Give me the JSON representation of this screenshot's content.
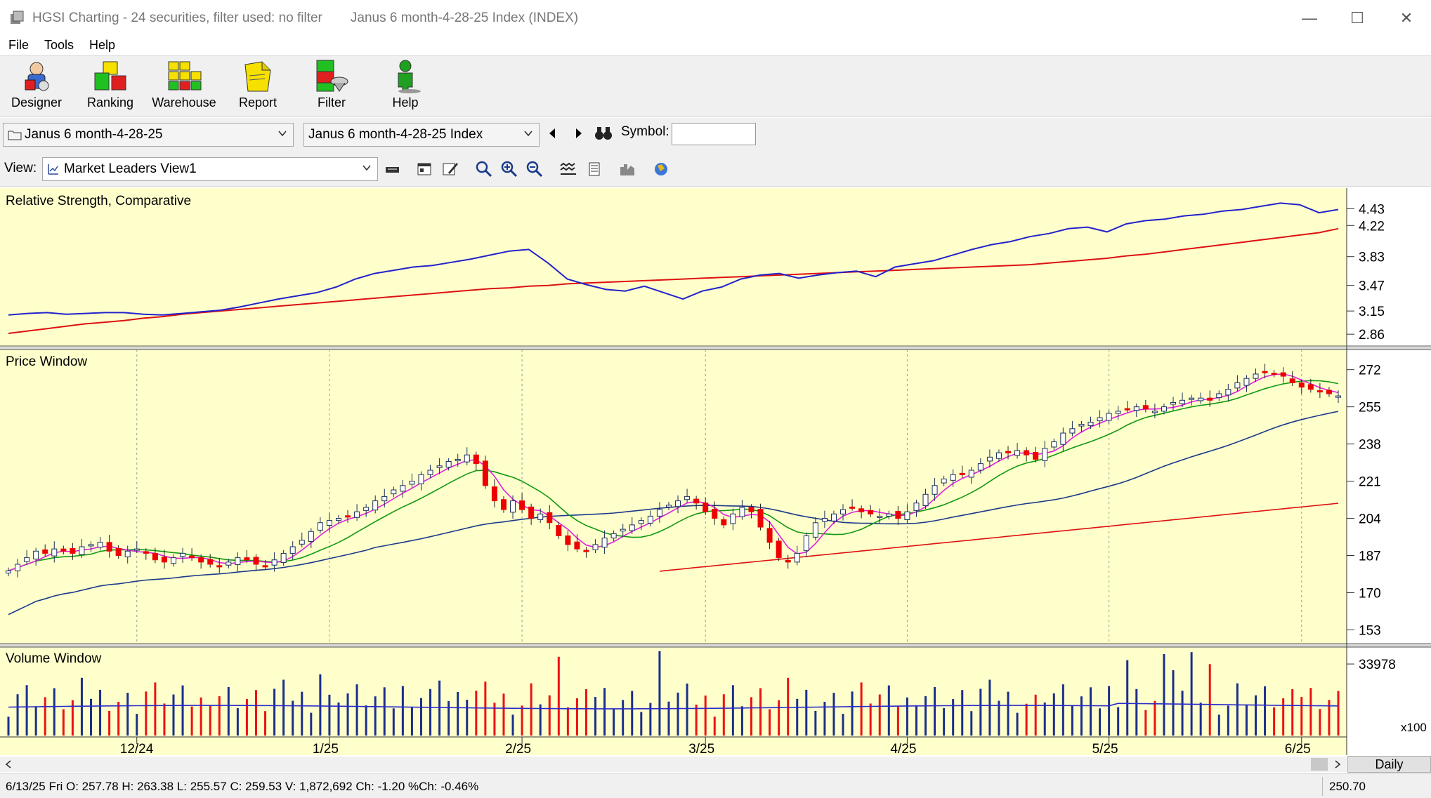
{
  "window": {
    "title": "HGSI Charting - 24 securities, filter used: no filter",
    "subtitle": "Janus 6 month-4-28-25 Index (INDEX)",
    "minimize": "—",
    "maximize": "☐",
    "close": "✕"
  },
  "menu": [
    "File",
    "Tools",
    "Help"
  ],
  "toolbar": {
    "designer": "Designer",
    "ranking": "Ranking",
    "warehouse": "Warehouse",
    "report": "Report",
    "filter": "Filter",
    "help": "Help"
  },
  "selectors": {
    "folder": "Janus 6 month-4-28-25",
    "security": "Janus 6 month-4-28-25 Index",
    "symbol_label": "Symbol:",
    "symbol_value": ""
  },
  "view": {
    "label": "View:",
    "selected": "Market Leaders View1"
  },
  "panels": {
    "rs_title": "Relative Strength, Comparative",
    "price_title": "Price Window",
    "volume_title": "Volume Window",
    "volume_multiplier": "x100"
  },
  "colors": {
    "chart_bg": "#ffffcc",
    "rs_line": "#2222cc",
    "rs_ma": "#dd1111",
    "up_candle": "#1a2f5a",
    "down_candle": "#ee0000",
    "ma_fast": "#e020e0",
    "ma_mid": "#119911",
    "ma_slow": "#1a3a8a",
    "ma_long": "#dd1111"
  },
  "chart_data": {
    "type": "line",
    "x_labels": [
      "12/24",
      "1/25",
      "2/25",
      "3/25",
      "4/25",
      "5/25",
      "6/25"
    ],
    "rs_axis": [
      4.43,
      4.22,
      3.83,
      3.47,
      3.15,
      2.86
    ],
    "price_axis": [
      272,
      255,
      238,
      221,
      204,
      187,
      170,
      153
    ],
    "volume_axis": [
      33978
    ],
    "rs_range": [
      2.8,
      4.6
    ],
    "price_range": [
      148,
      278
    ],
    "rs_line": [
      3.1,
      3.12,
      3.13,
      3.11,
      3.12,
      3.13,
      3.13,
      3.11,
      3.1,
      3.12,
      3.14,
      3.16,
      3.2,
      3.25,
      3.3,
      3.34,
      3.38,
      3.45,
      3.55,
      3.62,
      3.66,
      3.7,
      3.72,
      3.76,
      3.8,
      3.85,
      3.9,
      3.92,
      3.75,
      3.55,
      3.48,
      3.42,
      3.4,
      3.46,
      3.38,
      3.3,
      3.4,
      3.45,
      3.55,
      3.6,
      3.62,
      3.56,
      3.6,
      3.63,
      3.65,
      3.58,
      3.7,
      3.74,
      3.78,
      3.85,
      3.92,
      3.98,
      4.02,
      4.08,
      4.12,
      4.18,
      4.2,
      4.14,
      4.24,
      4.28,
      4.3,
      4.34,
      4.36,
      4.4,
      4.42,
      4.46,
      4.5,
      4.48,
      4.38,
      4.42
    ],
    "rs_ma": [
      2.87,
      2.9,
      2.93,
      2.96,
      2.99,
      3.01,
      3.03,
      3.06,
      3.08,
      3.11,
      3.13,
      3.15,
      3.17,
      3.19,
      3.21,
      3.23,
      3.25,
      3.27,
      3.29,
      3.31,
      3.33,
      3.35,
      3.37,
      3.39,
      3.41,
      3.43,
      3.44,
      3.46,
      3.47,
      3.49,
      3.5,
      3.51,
      3.52,
      3.53,
      3.54,
      3.55,
      3.56,
      3.57,
      3.58,
      3.59,
      3.6,
      3.61,
      3.62,
      3.63,
      3.64,
      3.65,
      3.66,
      3.67,
      3.68,
      3.69,
      3.7,
      3.71,
      3.72,
      3.73,
      3.75,
      3.77,
      3.79,
      3.81,
      3.84,
      3.86,
      3.89,
      3.92,
      3.95,
      3.98,
      4.01,
      4.04,
      4.07,
      4.1,
      4.13,
      4.18
    ],
    "closes": [
      180,
      183,
      186,
      189,
      188,
      190,
      189,
      188,
      191,
      192,
      193,
      189,
      187,
      189,
      190,
      188,
      185,
      184,
      186,
      188,
      186,
      184,
      183,
      182,
      184,
      186,
      185,
      183,
      182,
      185,
      188,
      191,
      194,
      198,
      202,
      203,
      204,
      205,
      207,
      209,
      212,
      214,
      217,
      219,
      221,
      224,
      226,
      228,
      230,
      231,
      233,
      229,
      219,
      212,
      208,
      212,
      208,
      204,
      206,
      202,
      196,
      192,
      190,
      189,
      192,
      195,
      197,
      199,
      201,
      203,
      205,
      208,
      210,
      212,
      214,
      211,
      207,
      204,
      201,
      206,
      209,
      207,
      200,
      193,
      186,
      184,
      188,
      196,
      202,
      204,
      206,
      208,
      209,
      207,
      206,
      205,
      206,
      204,
      207,
      211,
      215,
      219,
      222,
      224,
      224,
      226,
      229,
      232,
      234,
      234,
      235,
      233,
      231,
      236,
      239,
      243,
      245,
      247,
      248,
      250,
      252,
      253,
      254,
      255,
      254,
      253,
      255,
      257,
      258,
      259,
      259,
      258,
      261,
      263,
      266,
      268,
      270,
      271,
      270,
      269,
      266,
      264,
      263,
      262,
      261,
      260
    ]
  }
}
